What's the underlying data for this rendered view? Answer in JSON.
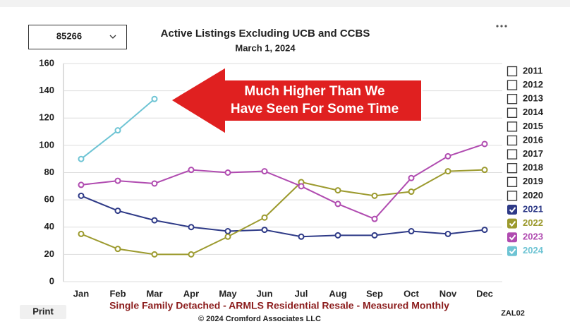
{
  "dropdown": "85266",
  "print_button": "Print",
  "footer": {
    "description": "Single Family Detached - ARMLS Residential Resale - Measured Monthly",
    "copyright": "© 2024 Cromford Associates LLC",
    "code": "ZAL02"
  },
  "chart_data": {
    "type": "line",
    "title": "Active Listings Excluding UCB and CCBS",
    "subtitle": "March 1, 2024",
    "annotation": [
      "Much Higher Than We",
      "Have Seen For Some Time"
    ],
    "categories": [
      "Jan",
      "Feb",
      "Mar",
      "Apr",
      "May",
      "Jun",
      "Jul",
      "Aug",
      "Sep",
      "Oct",
      "Nov",
      "Dec"
    ],
    "ylim": [
      0,
      160
    ],
    "yticks": [
      0,
      20,
      40,
      60,
      80,
      100,
      120,
      140,
      160
    ],
    "grid": true,
    "unchecked_legend": [
      "2011",
      "2012",
      "2013",
      "2014",
      "2015",
      "2016",
      "2017",
      "2018",
      "2019",
      "2020"
    ],
    "series": [
      {
        "name": "2021",
        "color": "#2e3a87",
        "values": [
          63,
          52,
          45,
          40,
          37,
          38,
          33,
          34,
          34,
          37,
          35,
          38
        ]
      },
      {
        "name": "2022",
        "color": "#9c9a2e",
        "values": [
          35,
          24,
          20,
          20,
          33,
          47,
          73,
          67,
          63,
          66,
          81,
          82
        ]
      },
      {
        "name": "2023",
        "color": "#b04bb0",
        "values": [
          71,
          74,
          72,
          82,
          80,
          81,
          70,
          57,
          46,
          76,
          92,
          101
        ]
      },
      {
        "name": "2024",
        "color": "#6ec4d4",
        "values": [
          90,
          111,
          134,
          null,
          null,
          null,
          null,
          null,
          null,
          null,
          null,
          null
        ]
      }
    ]
  }
}
